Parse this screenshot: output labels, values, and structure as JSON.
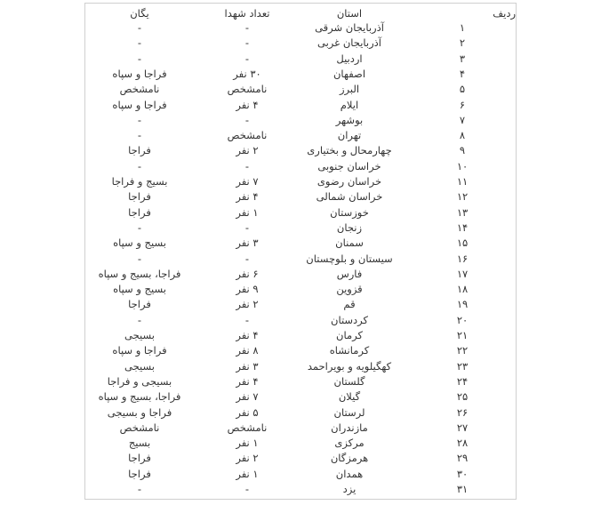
{
  "table": {
    "headers": {
      "index": "ردیف",
      "province": "استان",
      "count": "تعداد شهدا",
      "unit": "یگان"
    },
    "rows": [
      {
        "index": "۱",
        "province": "آذربایجان شرقی",
        "count": "-",
        "unit": "-"
      },
      {
        "index": "۲",
        "province": "آذربایجان غربی",
        "count": "-",
        "unit": "-"
      },
      {
        "index": "۳",
        "province": "اردبیل",
        "count": "-",
        "unit": "-"
      },
      {
        "index": "۴",
        "province": "اصفهان",
        "count": "۳۰ نفر",
        "unit": "فراجا و سپاه"
      },
      {
        "index": "۵",
        "province": "البرز",
        "count": "نامشخص",
        "unit": "نامشخص"
      },
      {
        "index": "۶",
        "province": "ایلام",
        "count": "۴ نفر",
        "unit": "فراجا و سپاه"
      },
      {
        "index": "۷",
        "province": "بوشهر",
        "count": "-",
        "unit": "-"
      },
      {
        "index": "۸",
        "province": "تهران",
        "count": "نامشخص",
        "unit": "-"
      },
      {
        "index": "۹",
        "province": "چهارمحال و بختیاری",
        "count": "۲ نفر",
        "unit": "فراجا"
      },
      {
        "index": "۱۰",
        "province": "خراسان جنوبی",
        "count": "-",
        "unit": "-"
      },
      {
        "index": "۱۱",
        "province": "خراسان رضوی",
        "count": "۷ نفر",
        "unit": "بسیج و فراجا"
      },
      {
        "index": "۱۲",
        "province": "خراسان شمالی",
        "count": "۴ نفر",
        "unit": "فراجا"
      },
      {
        "index": "۱۳",
        "province": "خوزستان",
        "count": "۱ نفر",
        "unit": "فراجا"
      },
      {
        "index": "۱۴",
        "province": "زنجان",
        "count": "-",
        "unit": "-"
      },
      {
        "index": "۱۵",
        "province": "سمنان",
        "count": "۳ نفر",
        "unit": "بسیج و سپاه"
      },
      {
        "index": "۱۶",
        "province": "سیستان و بلوچستان",
        "count": "-",
        "unit": "-"
      },
      {
        "index": "۱۷",
        "province": "فارس",
        "count": "۶ نفر",
        "unit": "فراجا، بسیج و سپاه"
      },
      {
        "index": "۱۸",
        "province": "قزوین",
        "count": "۹ نفر",
        "unit": "بسیج و سپاه"
      },
      {
        "index": "۱۹",
        "province": "قم",
        "count": "۲ نفر",
        "unit": "فراجا"
      },
      {
        "index": "۲۰",
        "province": "کردستان",
        "count": "-",
        "unit": "-"
      },
      {
        "index": "۲۱",
        "province": "کرمان",
        "count": "۴ نفر",
        "unit": "بسیجی"
      },
      {
        "index": "۲۲",
        "province": "کرمانشاه",
        "count": "۸ نفر",
        "unit": "فراجا و سپاه"
      },
      {
        "index": "۲۳",
        "province": "کهگیلویه و بویراحمد",
        "count": "۳ نفر",
        "unit": "بسیجی"
      },
      {
        "index": "۲۴",
        "province": "گلستان",
        "count": "۴ نفر",
        "unit": "بسیجی و فراجا"
      },
      {
        "index": "۲۵",
        "province": "گیلان",
        "count": "۷ نفر",
        "unit": "فراجا، بسیج و سپاه"
      },
      {
        "index": "۲۶",
        "province": "لرستان",
        "count": "۵ نفر",
        "unit": "فراجا و بسیجی"
      },
      {
        "index": "۲۷",
        "province": "مازندران",
        "count": "نامشخص",
        "unit": "نامشخص"
      },
      {
        "index": "۲۸",
        "province": "مرکزی",
        "count": "۱ نفر",
        "unit": "بسیج"
      },
      {
        "index": "۲۹",
        "province": "هرمزگان",
        "count": "۲ نفر",
        "unit": "فراجا"
      },
      {
        "index": "۳۰",
        "province": "همدان",
        "count": "۱ نفر",
        "unit": "فراجا"
      },
      {
        "index": "۳۱",
        "province": "یزد",
        "count": "-",
        "unit": "-"
      }
    ]
  }
}
